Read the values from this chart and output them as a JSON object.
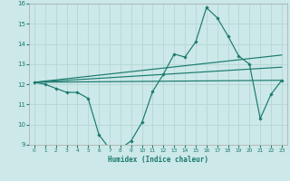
{
  "xlabel": "Humidex (Indice chaleur)",
  "bg_color": "#cce8e8",
  "grid_color": "#b8d8d8",
  "line_color": "#1a7a6e",
  "xlim": [
    -0.5,
    23.5
  ],
  "ylim": [
    9,
    16
  ],
  "xticks": [
    0,
    1,
    2,
    3,
    4,
    5,
    6,
    7,
    8,
    9,
    10,
    11,
    12,
    13,
    14,
    15,
    16,
    17,
    18,
    19,
    20,
    21,
    22,
    23
  ],
  "yticks": [
    9,
    10,
    11,
    12,
    13,
    14,
    15,
    16
  ],
  "main_x": [
    0,
    1,
    2,
    3,
    4,
    5,
    6,
    7,
    8,
    9,
    10,
    11,
    12,
    13,
    14,
    15,
    16,
    17,
    18,
    19,
    20,
    21,
    22,
    23
  ],
  "main_y": [
    12.1,
    12.0,
    11.8,
    11.6,
    11.6,
    11.3,
    9.5,
    8.8,
    8.8,
    9.2,
    10.1,
    11.65,
    12.5,
    13.5,
    13.35,
    14.1,
    15.8,
    15.3,
    14.4,
    13.4,
    13.0,
    10.3,
    11.5,
    12.2
  ],
  "trend1_x": [
    0,
    23
  ],
  "trend1_y": [
    12.1,
    12.2
  ],
  "trend2_x": [
    0,
    23
  ],
  "trend2_y": [
    12.1,
    12.85
  ],
  "trend3_x": [
    0,
    23
  ],
  "trend3_y": [
    12.1,
    13.45
  ]
}
